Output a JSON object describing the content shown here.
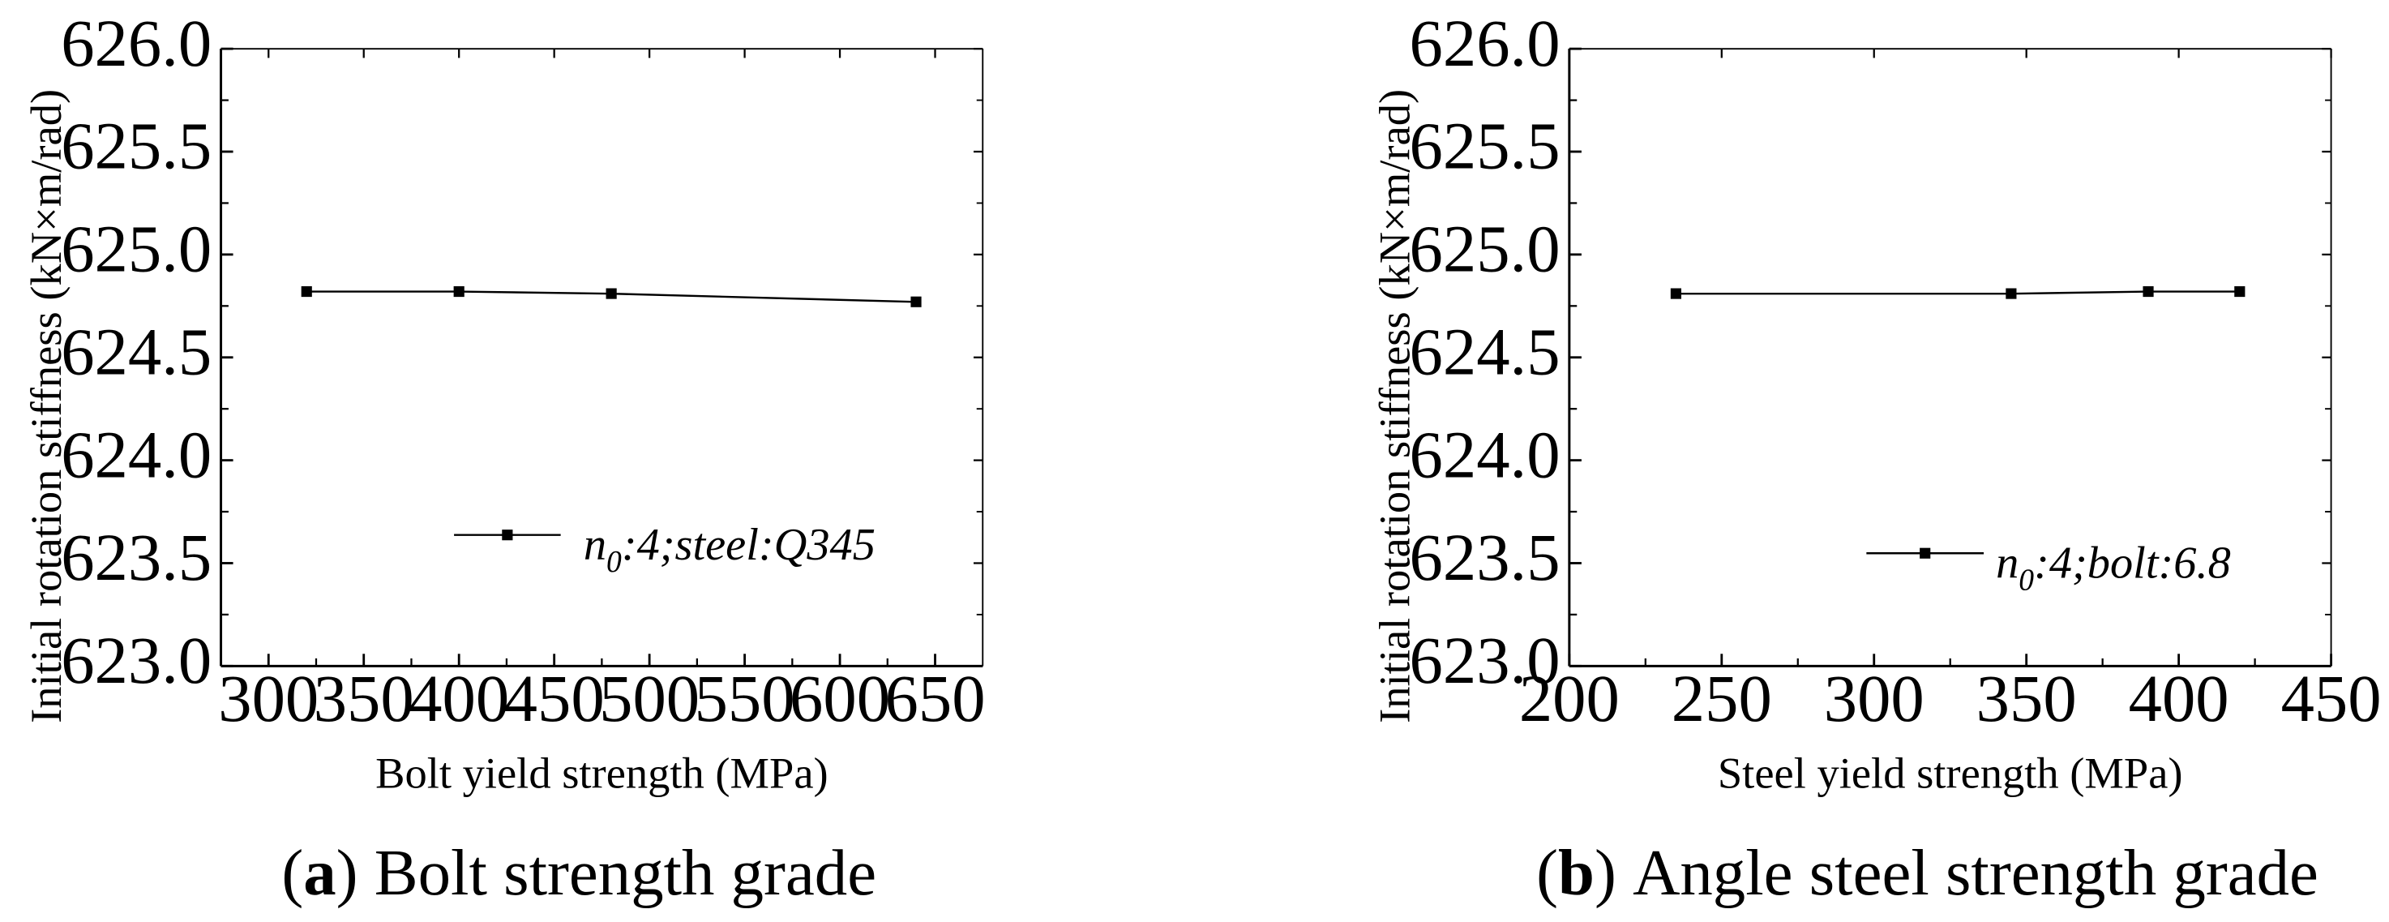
{
  "chart_data": [
    {
      "type": "line",
      "caption": {
        "letter": "a",
        "text": "Bolt strength grade"
      },
      "xlabel": "Bolt yield strength (MPa)",
      "ylabel": "Initial rotation stiffness (kN×m/rad)",
      "xlim": [
        275,
        675
      ],
      "ylim": [
        623.0,
        626.0
      ],
      "xticks": [
        300,
        350,
        400,
        450,
        500,
        550,
        600,
        650
      ],
      "xtick_labels": [
        "300",
        "350",
        "400",
        "450",
        "500",
        "550",
        "600",
        "650"
      ],
      "yticks": [
        623.0,
        623.5,
        624.0,
        624.5,
        625.0,
        625.5,
        626.0
      ],
      "ytick_labels": [
        "623.0",
        "623.5",
        "624.0",
        "624.5",
        "625.0",
        "625.5",
        "626.0"
      ],
      "legend_position": "right",
      "series": [
        {
          "name": "n0:4;steel:Q345",
          "legend": {
            "main": "n",
            "sub": "0",
            "rest": ":4;steel:Q345"
          },
          "x": [
            320,
            400,
            480,
            640
          ],
          "y": [
            624.82,
            624.82,
            624.81,
            624.77
          ]
        }
      ]
    },
    {
      "type": "line",
      "caption": {
        "letter": "b",
        "text": "Angle steel strength grade"
      },
      "xlabel": "Steel yield strength (MPa)",
      "ylabel": "Initial rotation stiffness (kN×m/rad)",
      "xlim": [
        200,
        450
      ],
      "ylim": [
        623.0,
        626.0
      ],
      "xticks": [
        200,
        250,
        300,
        350,
        400,
        450
      ],
      "xtick_labels": [
        "200",
        "250",
        "300",
        "350",
        "400",
        "450"
      ],
      "yticks": [
        623.0,
        623.5,
        624.0,
        624.5,
        625.0,
        625.5,
        626.0
      ],
      "ytick_labels": [
        "623.0",
        "623.5",
        "624.0",
        "624.5",
        "625.0",
        "625.5",
        "626.0"
      ],
      "legend_position": "right",
      "series": [
        {
          "name": "n0:4;bolt:6.8",
          "legend": {
            "main": "n",
            "sub": "0",
            "rest": ":4;bolt:6.8"
          },
          "x": [
            235,
            345,
            390,
            420
          ],
          "y": [
            624.81,
            624.81,
            624.82,
            624.82
          ]
        }
      ]
    }
  ]
}
